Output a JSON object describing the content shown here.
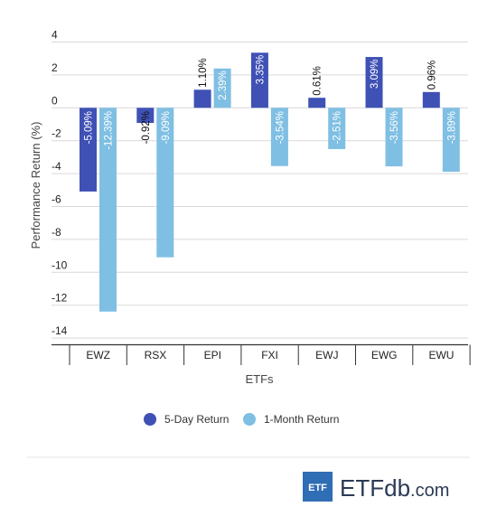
{
  "chart_data": {
    "type": "bar",
    "categories": [
      "EWZ",
      "RSX",
      "EPI",
      "FXI",
      "EWJ",
      "EWG",
      "EWU"
    ],
    "series": [
      {
        "name": "5-Day Return",
        "values": [
          -5.09,
          -0.92,
          1.1,
          3.35,
          0.61,
          3.09,
          0.96
        ],
        "labels": [
          "-5.09%",
          "-0.92%",
          "1.10%",
          "3.35%",
          "0.61%",
          "3.09%",
          "0.96%"
        ],
        "color": "#3f51b5"
      },
      {
        "name": "1-Month Return",
        "values": [
          -12.39,
          -9.09,
          2.39,
          -3.54,
          -2.51,
          -3.56,
          -3.89
        ],
        "labels": [
          "-12.39%",
          "-9.09%",
          "2.39%",
          "-3.54%",
          "-2.51%",
          "-3.56%",
          "-3.89%"
        ],
        "color": "#7fbfe3"
      }
    ],
    "yticks": [
      "4",
      "2",
      "0",
      "-2",
      "-4",
      "-6",
      "-8",
      "-10",
      "-12",
      "-14"
    ],
    "ylim": [
      -14,
      4
    ],
    "grid": true,
    "xlabel": "ETFs",
    "ylabel": "Performance Return (%)",
    "legend_position": "bottom"
  },
  "logo": {
    "badge": "ETF",
    "brand": "ETFdb.com"
  },
  "colors": {
    "badge": "#2f6db5",
    "logo_text": "#2b3a55",
    "grid": "#d9d9d9"
  }
}
